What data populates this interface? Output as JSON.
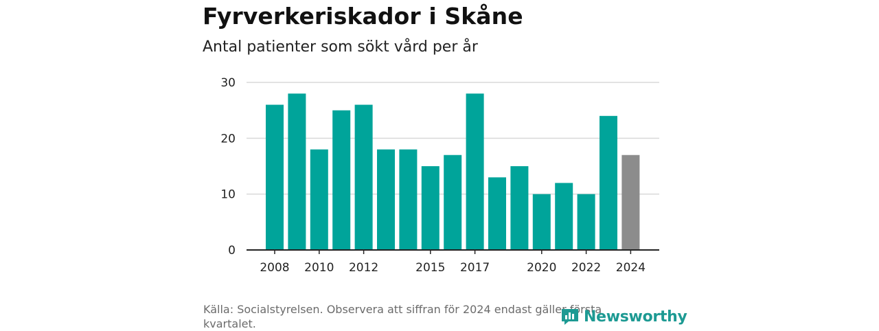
{
  "title": "Fyrverkeriskador i Skåne",
  "subtitle": "Antal patienter som sökt vård per år",
  "source": "Källa: Socialstyrelsen. Observera att siffran för 2024 endast gäller första kvartalet.",
  "logo": {
    "text": "Newsworthy",
    "icon": "newsworthy-logo-icon"
  },
  "colors": {
    "bar": "#00a49a",
    "highlight": "#8c8c8c",
    "grid": "#d9d9d9",
    "axis": "#222222",
    "logo": "#1d9a93"
  },
  "chart_data": {
    "type": "bar",
    "title": "Fyrverkeriskador i Skåne",
    "subtitle": "Antal patienter som sökt vård per år",
    "categories": [
      "2008",
      "2009",
      "2010",
      "2011",
      "2012",
      "2013",
      "2014",
      "2015",
      "2016",
      "2017",
      "2018",
      "2019",
      "2020",
      "2021",
      "2022",
      "2023",
      "2024"
    ],
    "values": [
      26,
      28,
      18,
      25,
      26,
      18,
      18,
      15,
      17,
      28,
      13,
      15,
      10,
      12,
      10,
      24,
      17
    ],
    "highlighted": [
      "2024"
    ],
    "x_tick_labels": [
      "2008",
      "2010",
      "2012",
      "2015",
      "2017",
      "2020",
      "2022",
      "2024"
    ],
    "y_ticks": [
      0,
      10,
      20,
      30
    ],
    "ylim": [
      0,
      30
    ],
    "xlabel": "",
    "ylabel": "",
    "grid": true,
    "legend": "none"
  }
}
